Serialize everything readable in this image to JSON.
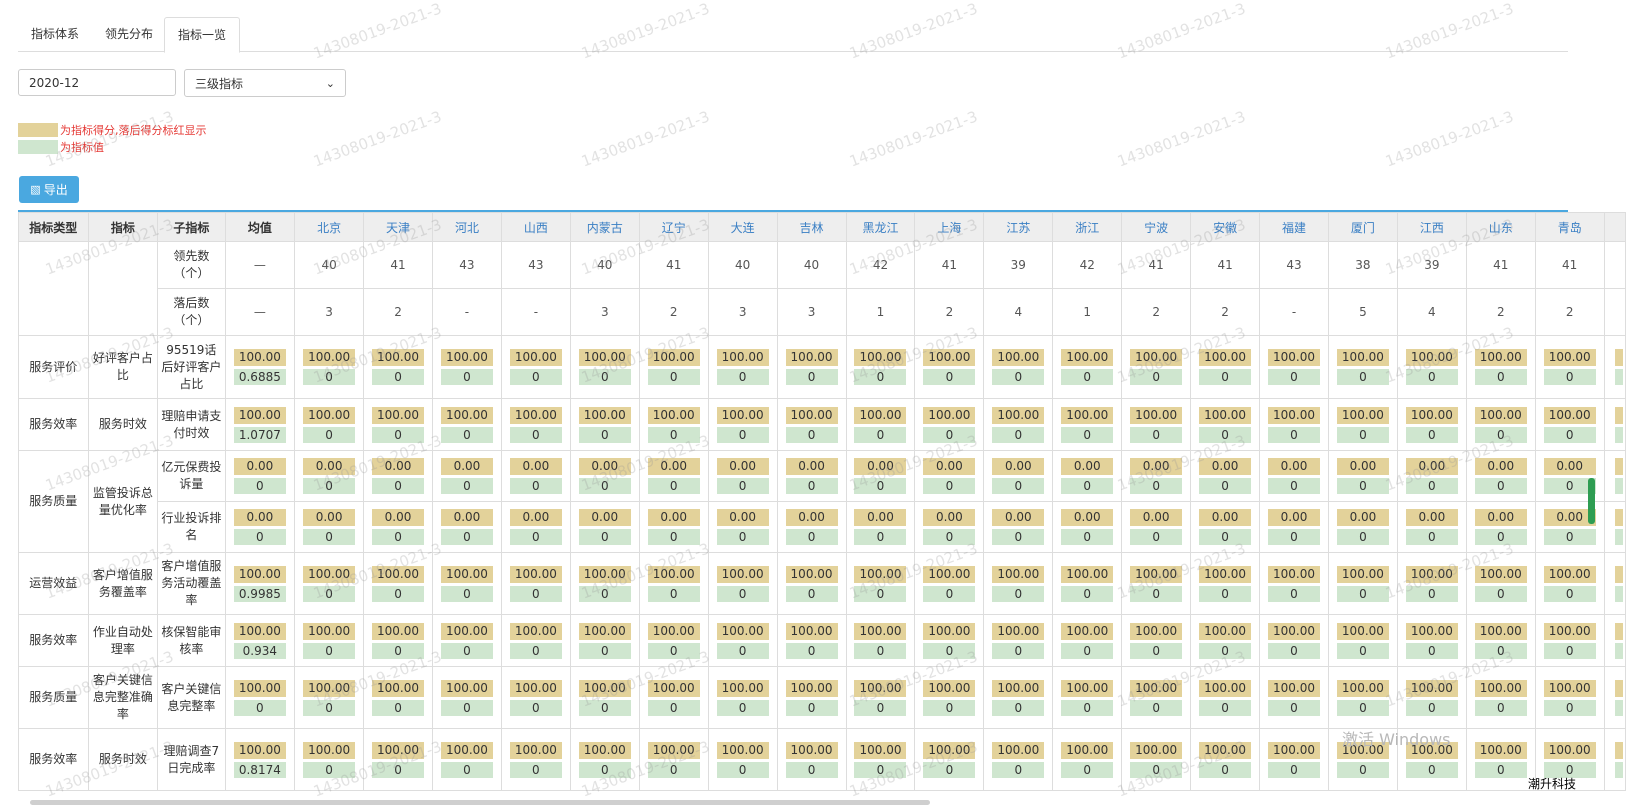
{
  "tabs": [
    {
      "label": "指标体系",
      "active": false
    },
    {
      "label": "领先分布",
      "active": false
    },
    {
      "label": "指标一览",
      "active": true
    }
  ],
  "filters": {
    "date_value": "2020-12",
    "level_select": {
      "value": "三级指标"
    }
  },
  "legend": [
    {
      "text": "为指标得分,落后得分标红显示",
      "color": "#e3d29a"
    },
    {
      "text": "为指标值",
      "color": "#cfe6cf"
    }
  ],
  "export_label": "导出",
  "table": {
    "headers": [
      "指标类型",
      "指标",
      "子指标",
      "均值"
    ],
    "provinces": [
      "北京",
      "天津",
      "河北",
      "山西",
      "内蒙古",
      "辽宁",
      "大连",
      "吉林",
      "黑龙江",
      "上海",
      "江苏",
      "浙江",
      "宁波",
      "安徽",
      "福建",
      "厦门",
      "江西",
      "山东",
      "青岛"
    ],
    "lead_label": "领先数（个）",
    "lag_label": "落后数（个）",
    "lead_avg": "—",
    "lag_avg": "—",
    "lead_counts": [
      "40",
      "41",
      "43",
      "43",
      "40",
      "41",
      "40",
      "40",
      "42",
      "41",
      "39",
      "42",
      "41",
      "41",
      "43",
      "38",
      "39",
      "41",
      "41"
    ],
    "lag_counts": [
      "3",
      "2",
      "-",
      "-",
      "3",
      "2",
      "3",
      "3",
      "1",
      "2",
      "4",
      "1",
      "2",
      "2",
      "-",
      "5",
      "4",
      "2",
      "2"
    ],
    "groups": [
      {
        "type": "服务评价",
        "name": "好评客户占比",
        "subs": [
          {
            "name": "95519话后好评客户占比",
            "avg_score": "100.00",
            "avg_val": "0.6885",
            "score": "100.00",
            "val": "0"
          }
        ]
      },
      {
        "type": "服务效率",
        "name": "服务时效",
        "subs": [
          {
            "name": "理赔申请支付时效",
            "avg_score": "100.00",
            "avg_val": "1.0707",
            "score": "100.00",
            "val": "0"
          }
        ]
      },
      {
        "type": "服务质量",
        "name": "监管投诉总量优化率",
        "subs": [
          {
            "name": "亿元保费投诉量",
            "avg_score": "0.00",
            "avg_val": "0",
            "score": "0.00",
            "val": "0"
          },
          {
            "name": "行业投诉排名",
            "avg_score": "0.00",
            "avg_val": "0",
            "score": "0.00",
            "val": "0"
          }
        ]
      },
      {
        "type": "运营效益",
        "name": "客户增值服务覆盖率",
        "subs": [
          {
            "name": "客户增值服务活动覆盖率",
            "avg_score": "100.00",
            "avg_val": "0.9985",
            "score": "100.00",
            "val": "0"
          }
        ]
      },
      {
        "type": "服务效率",
        "name": "作业自动处理率",
        "subs": [
          {
            "name": "核保智能审核率",
            "avg_score": "100.00",
            "avg_val": "0.934",
            "score": "100.00",
            "val": "0"
          }
        ]
      },
      {
        "type": "服务质量",
        "name": "客户关键信息完整准确率",
        "subs": [
          {
            "name": "客户关键信息完整率",
            "avg_score": "100.00",
            "avg_val": "0",
            "score": "100.00",
            "val": "0"
          }
        ]
      },
      {
        "type": "服务效率",
        "name": "服务时效",
        "subs": [
          {
            "name": "理赔调查7日完成率",
            "avg_score": "100.00",
            "avg_val": "0.8174",
            "score": "100.00",
            "val": "0"
          }
        ]
      }
    ]
  },
  "watermark": "14308019-2021-3",
  "windows_activation": "激活 Windows",
  "brand": "潮升科技",
  "colors": {
    "accent": "#4aa8e0",
    "score": "#e3d29a",
    "value": "#cfe6cf",
    "legend_text": "#e53935"
  }
}
